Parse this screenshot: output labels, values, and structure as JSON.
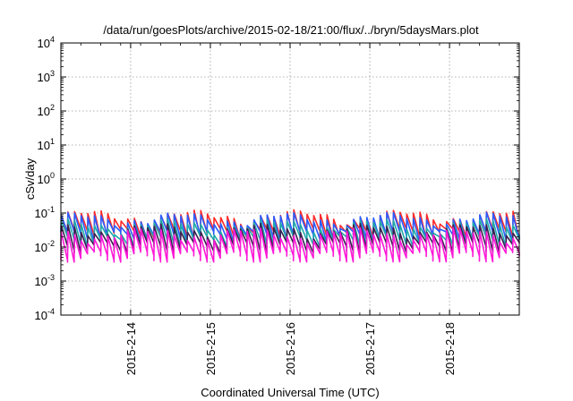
{
  "chart_data": {
    "type": "line",
    "title": "/data/run/goesPlots/archive/2015-02-18/21:00/flux/../bryn/5daysMars.plot",
    "xlabel": "Coordinated Universal Time (UTC)",
    "ylabel": "cSv/day",
    "yscale": "log",
    "ylim": [
      0.0001,
      10000
    ],
    "y_ticks": [
      {
        "base": "10",
        "exp": "-4",
        "value": 0.0001
      },
      {
        "base": "10",
        "exp": "-3",
        "value": 0.001
      },
      {
        "base": "10",
        "exp": "-2",
        "value": 0.01
      },
      {
        "base": "10",
        "exp": "-1",
        "value": 0.1
      },
      {
        "base": "10",
        "exp": "0",
        "value": 1
      },
      {
        "base": "10",
        "exp": "1",
        "value": 10
      },
      {
        "base": "10",
        "exp": "2",
        "value": 100
      },
      {
        "base": "10",
        "exp": "3",
        "value": 1000
      },
      {
        "base": "10",
        "exp": "4",
        "value": 10000
      }
    ],
    "xlim": [
      "2015-02-13T03:00",
      "2015-02-18T21:00"
    ],
    "x_ticks": [
      "2015-2-14",
      "2015-2-15",
      "2015-2-16",
      "2015-2-17",
      "2015-2-18"
    ],
    "grid": true,
    "pattern": "sawtooth",
    "spike_period_hours": 2,
    "series": [
      {
        "color": "#ff2a2a",
        "peak": 0.1,
        "trough": 0.03
      },
      {
        "color": "#2a5cff",
        "peak": 0.085,
        "trough": 0.025
      },
      {
        "color": "#1faaaa",
        "peak": 0.055,
        "trough": 0.018
      },
      {
        "color": "#3a2050",
        "peak": 0.04,
        "trough": 0.012
      },
      {
        "color": "#ff1ad8",
        "peak": 0.03,
        "trough": 0.0065
      }
    ]
  }
}
